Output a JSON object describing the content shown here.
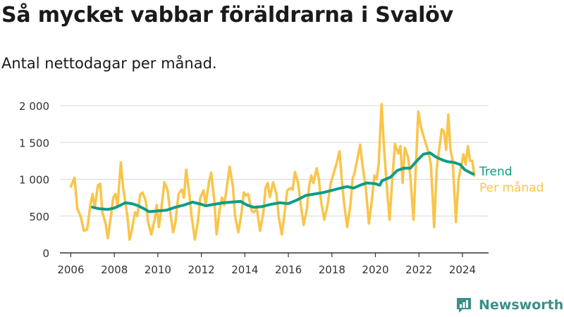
{
  "title": "Så mycket vabbar föräldrarna i Svalöv",
  "subtitle": "Antal nettodagar per månad.",
  "brand": {
    "name": "Newsworthy"
  },
  "colors": {
    "monthly": "#f9c54a",
    "trend": "#0e9c86",
    "grid": "#d9d9d9",
    "axis": "#333333",
    "brand": "#3a8f89"
  },
  "chart_data": {
    "type": "line",
    "x_range": [
      2005.5,
      2025.2
    ],
    "ylim": [
      0,
      2000
    ],
    "y_ticks": [
      0,
      500,
      1000,
      1500,
      2000
    ],
    "y_tick_labels": [
      "0",
      "500",
      "1 000",
      "1 500",
      "2 000"
    ],
    "x_ticks": [
      2006,
      2008,
      2010,
      2012,
      2014,
      2016,
      2018,
      2020,
      2022,
      2024
    ],
    "x_tick_labels": [
      "2006",
      "2008",
      "2010",
      "2012",
      "2014",
      "2016",
      "2018",
      "2020",
      "2022",
      "2024"
    ],
    "grid": "horizontal",
    "series": [
      {
        "name": "Per månad",
        "points": [
          [
            2006.0,
            900
          ],
          [
            2006.17,
            1020
          ],
          [
            2006.3,
            600
          ],
          [
            2006.45,
            500
          ],
          [
            2006.6,
            300
          ],
          [
            2006.75,
            320
          ],
          [
            2006.9,
            650
          ],
          [
            2007.0,
            800
          ],
          [
            2007.1,
            620
          ],
          [
            2007.25,
            920
          ],
          [
            2007.35,
            940
          ],
          [
            2007.45,
            550
          ],
          [
            2007.6,
            400
          ],
          [
            2007.7,
            200
          ],
          [
            2007.8,
            400
          ],
          [
            2007.95,
            750
          ],
          [
            2008.05,
            800
          ],
          [
            2008.15,
            650
          ],
          [
            2008.3,
            1230
          ],
          [
            2008.4,
            900
          ],
          [
            2008.5,
            700
          ],
          [
            2008.6,
            500
          ],
          [
            2008.7,
            180
          ],
          [
            2008.8,
            300
          ],
          [
            2008.95,
            550
          ],
          [
            2009.05,
            500
          ],
          [
            2009.2,
            800
          ],
          [
            2009.3,
            820
          ],
          [
            2009.45,
            700
          ],
          [
            2009.55,
            420
          ],
          [
            2009.7,
            250
          ],
          [
            2009.85,
            450
          ],
          [
            2009.95,
            650
          ],
          [
            2010.05,
            350
          ],
          [
            2010.2,
            700
          ],
          [
            2010.3,
            960
          ],
          [
            2010.45,
            850
          ],
          [
            2010.55,
            600
          ],
          [
            2010.7,
            280
          ],
          [
            2010.8,
            400
          ],
          [
            2010.95,
            800
          ],
          [
            2011.1,
            860
          ],
          [
            2011.2,
            750
          ],
          [
            2011.3,
            1130
          ],
          [
            2011.45,
            800
          ],
          [
            2011.55,
            500
          ],
          [
            2011.7,
            180
          ],
          [
            2011.85,
            450
          ],
          [
            2011.95,
            750
          ],
          [
            2012.1,
            850
          ],
          [
            2012.2,
            660
          ],
          [
            2012.35,
            960
          ],
          [
            2012.45,
            1090
          ],
          [
            2012.6,
            700
          ],
          [
            2012.7,
            250
          ],
          [
            2012.85,
            600
          ],
          [
            2012.95,
            750
          ],
          [
            2013.05,
            650
          ],
          [
            2013.15,
            850
          ],
          [
            2013.3,
            1170
          ],
          [
            2013.45,
            900
          ],
          [
            2013.55,
            500
          ],
          [
            2013.7,
            280
          ],
          [
            2013.85,
            550
          ],
          [
            2013.95,
            820
          ],
          [
            2014.05,
            780
          ],
          [
            2014.15,
            800
          ],
          [
            2014.3,
            580
          ],
          [
            2014.4,
            550
          ],
          [
            2014.55,
            600
          ],
          [
            2014.7,
            300
          ],
          [
            2014.85,
            550
          ],
          [
            2014.95,
            880
          ],
          [
            2015.05,
            950
          ],
          [
            2015.15,
            760
          ],
          [
            2015.3,
            960
          ],
          [
            2015.45,
            800
          ],
          [
            2015.55,
            500
          ],
          [
            2015.7,
            250
          ],
          [
            2015.85,
            600
          ],
          [
            2015.95,
            850
          ],
          [
            2016.1,
            880
          ],
          [
            2016.2,
            860
          ],
          [
            2016.3,
            1100
          ],
          [
            2016.45,
            950
          ],
          [
            2016.55,
            700
          ],
          [
            2016.7,
            380
          ],
          [
            2016.85,
            600
          ],
          [
            2016.95,
            900
          ],
          [
            2017.05,
            1050
          ],
          [
            2017.15,
            950
          ],
          [
            2017.3,
            1150
          ],
          [
            2017.4,
            1000
          ],
          [
            2017.5,
            700
          ],
          [
            2017.65,
            450
          ],
          [
            2017.8,
            650
          ],
          [
            2017.95,
            950
          ],
          [
            2018.05,
            1050
          ],
          [
            2018.2,
            1200
          ],
          [
            2018.35,
            1380
          ],
          [
            2018.45,
            1000
          ],
          [
            2018.55,
            700
          ],
          [
            2018.7,
            350
          ],
          [
            2018.85,
            650
          ],
          [
            2018.95,
            1000
          ],
          [
            2019.05,
            1100
          ],
          [
            2019.15,
            1250
          ],
          [
            2019.3,
            1470
          ],
          [
            2019.4,
            1200
          ],
          [
            2019.55,
            900
          ],
          [
            2019.7,
            400
          ],
          [
            2019.85,
            750
          ],
          [
            2019.95,
            1050
          ],
          [
            2020.05,
            1000
          ],
          [
            2020.15,
            1200
          ],
          [
            2020.28,
            2020
          ],
          [
            2020.4,
            1400
          ],
          [
            2020.55,
            800
          ],
          [
            2020.65,
            450
          ],
          [
            2020.8,
            1100
          ],
          [
            2020.9,
            1480
          ],
          [
            2021.05,
            1350
          ],
          [
            2021.15,
            1450
          ],
          [
            2021.25,
            950
          ],
          [
            2021.35,
            1430
          ],
          [
            2021.5,
            1300
          ],
          [
            2021.6,
            1050
          ],
          [
            2021.75,
            450
          ],
          [
            2021.85,
            1100
          ],
          [
            2021.97,
            1920
          ],
          [
            2022.1,
            1700
          ],
          [
            2022.2,
            1600
          ],
          [
            2022.3,
            1500
          ],
          [
            2022.45,
            1350
          ],
          [
            2022.55,
            1200
          ],
          [
            2022.7,
            350
          ],
          [
            2022.82,
            1150
          ],
          [
            2022.92,
            1380
          ],
          [
            2023.05,
            1680
          ],
          [
            2023.15,
            1650
          ],
          [
            2023.25,
            1400
          ],
          [
            2023.35,
            1880
          ],
          [
            2023.45,
            1400
          ],
          [
            2023.55,
            1250
          ],
          [
            2023.7,
            420
          ],
          [
            2023.82,
            1000
          ],
          [
            2023.92,
            1150
          ],
          [
            2024.05,
            1340
          ],
          [
            2024.15,
            1200
          ],
          [
            2024.25,
            1450
          ],
          [
            2024.35,
            1250
          ],
          [
            2024.45,
            1250
          ],
          [
            2024.55,
            1050
          ]
        ]
      },
      {
        "name": "Trend",
        "points": [
          [
            2007.0,
            620
          ],
          [
            2007.3,
            600
          ],
          [
            2007.7,
            590
          ],
          [
            2008.0,
            610
          ],
          [
            2008.3,
            650
          ],
          [
            2008.5,
            680
          ],
          [
            2008.8,
            670
          ],
          [
            2009.1,
            640
          ],
          [
            2009.3,
            610
          ],
          [
            2009.6,
            560
          ],
          [
            2010.0,
            570
          ],
          [
            2010.4,
            580
          ],
          [
            2010.8,
            620
          ],
          [
            2011.2,
            650
          ],
          [
            2011.6,
            690
          ],
          [
            2012.0,
            660
          ],
          [
            2012.2,
            640
          ],
          [
            2012.6,
            660
          ],
          [
            2013.0,
            680
          ],
          [
            2013.4,
            690
          ],
          [
            2013.8,
            700
          ],
          [
            2014.1,
            650
          ],
          [
            2014.4,
            620
          ],
          [
            2014.8,
            630
          ],
          [
            2015.2,
            660
          ],
          [
            2015.6,
            680
          ],
          [
            2016.0,
            670
          ],
          [
            2016.4,
            720
          ],
          [
            2016.8,
            780
          ],
          [
            2017.2,
            800
          ],
          [
            2017.6,
            820
          ],
          [
            2018.0,
            850
          ],
          [
            2018.4,
            880
          ],
          [
            2018.7,
            900
          ],
          [
            2019.0,
            880
          ],
          [
            2019.3,
            920
          ],
          [
            2019.6,
            950
          ],
          [
            2020.0,
            940
          ],
          [
            2020.2,
            920
          ],
          [
            2020.3,
            980
          ],
          [
            2020.7,
            1030
          ],
          [
            2021.0,
            1120
          ],
          [
            2021.3,
            1150
          ],
          [
            2021.6,
            1150
          ],
          [
            2021.9,
            1250
          ],
          [
            2022.2,
            1340
          ],
          [
            2022.5,
            1360
          ],
          [
            2022.8,
            1300
          ],
          [
            2023.1,
            1260
          ],
          [
            2023.3,
            1240
          ],
          [
            2023.6,
            1230
          ],
          [
            2023.9,
            1200
          ],
          [
            2024.1,
            1130
          ],
          [
            2024.3,
            1100
          ],
          [
            2024.5,
            1070
          ]
        ]
      }
    ],
    "legend": {
      "placement": "right",
      "entries": [
        "Trend",
        "Per månad"
      ]
    }
  }
}
